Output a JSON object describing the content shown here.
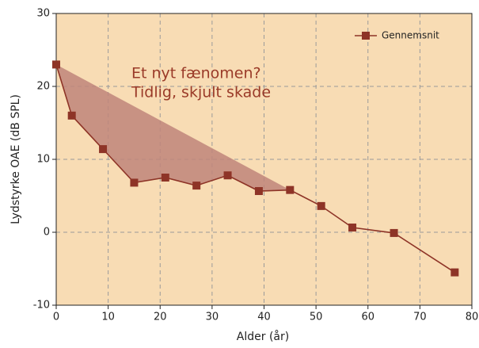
{
  "chart_data": {
    "type": "line",
    "xlabel": "Alder  (år)",
    "ylabel": "Lydstyrke  OAE (dB SPL)",
    "annotation": [
      "Et nyt fænomen?",
      "Tidlig, skjult skade"
    ],
    "x": [
      0,
      3,
      9,
      15,
      21,
      27,
      33,
      39,
      45,
      51,
      57,
      65,
      76.7
    ],
    "series": [
      {
        "name": "Gennemsnit",
        "color": "#8e3427",
        "values": [
          23,
          16,
          11.4,
          6.8,
          7.5,
          6.4,
          7.8,
          5.65,
          5.8,
          3.6,
          0.65,
          -0.1,
          -5.5
        ]
      }
    ],
    "xlim": [
      0,
      80
    ],
    "xticks": [
      0,
      10,
      20,
      30,
      40,
      50,
      60,
      70,
      80
    ],
    "ylim": [
      -10,
      30
    ],
    "yticks": [
      -10,
      0,
      10,
      20,
      30
    ],
    "grid": true,
    "legend": "upper right",
    "background": "#f8dcb4",
    "shade_color": "#c0857a"
  }
}
